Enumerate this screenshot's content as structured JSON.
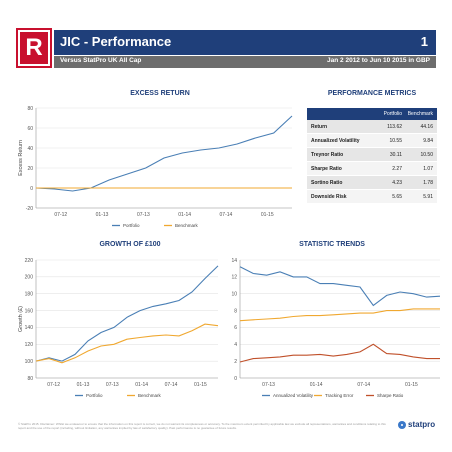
{
  "header": {
    "logo_letter": "R",
    "title": "JIC  -  Performance",
    "page_number": "1",
    "subtitle_left": "Versus StatPro UK All Cap",
    "subtitle_right": "Jan 2 2012 to Jun 10 2015 in GBP"
  },
  "colors": {
    "header_blue": "#1f3f7a",
    "logo_red": "#c8102e",
    "portfolio": "#4a7fb5",
    "benchmark": "#f0a830",
    "annualized_volatility": "#4a7fb5",
    "tracking_error": "#f0a830",
    "sharpe_ratio": "#c0502a"
  },
  "metrics": {
    "title": "PERFORMANCE METRICS",
    "columns": [
      "",
      "Portfolio",
      "Benchmark"
    ],
    "rows": [
      {
        "label": "Return",
        "portfolio": "113.62",
        "benchmark": "44.16"
      },
      {
        "label": "Annualized Volatility",
        "portfolio": "10.55",
        "benchmark": "9.84"
      },
      {
        "label": "Treynor Ratio",
        "portfolio": "30.11",
        "benchmark": "10.50"
      },
      {
        "label": "Sharpe Ratio",
        "portfolio": "2.27",
        "benchmark": "1.07"
      },
      {
        "label": "Sortino Ratio",
        "portfolio": "4.23",
        "benchmark": "1.78"
      },
      {
        "label": "Downside Risk",
        "portfolio": "5.65",
        "benchmark": "5.91"
      }
    ]
  },
  "footer": {
    "disclaimer": "© StatPro 2015. Disclaimer: Whilst we endeavour to ensure that the information on this report is correct, we do not warrant its completeness or accuracy. To the maximum extent permitted by applicable law we exclude all representations, warranties and conditions relating to this report and the use of the report (including, without limitation, any warranties implied by law of satisfactory quality). Past performance is no guarantee of future results.",
    "brand": "statpro"
  },
  "chart_data": [
    {
      "type": "line",
      "title": "EXCESS RETURN",
      "ylabel": "Excess Return",
      "xlabel": "",
      "ylim": [
        -20,
        80
      ],
      "yticks": [
        -20,
        0,
        20,
        40,
        60,
        80
      ],
      "xticks": [
        "07-12",
        "01-13",
        "07-13",
        "01-14",
        "07-14",
        "01-15"
      ],
      "x": [
        "01-12",
        "04-12",
        "07-12",
        "10-12",
        "01-13",
        "04-13",
        "07-13",
        "10-13",
        "01-14",
        "04-14",
        "07-14",
        "10-14",
        "01-15",
        "04-15",
        "06-15"
      ],
      "series": [
        {
          "name": "Portfolio",
          "values": [
            0,
            -1,
            -3,
            0,
            8,
            14,
            20,
            30,
            35,
            38,
            40,
            44,
            50,
            55,
            72
          ]
        },
        {
          "name": "Benchmark",
          "values": [
            0,
            0,
            0,
            0,
            0,
            0,
            0,
            0,
            0,
            0,
            0,
            0,
            0,
            0,
            0
          ]
        }
      ],
      "legend": "bottom"
    },
    {
      "type": "line",
      "title": "GROWTH OF £100",
      "ylabel": "Growth (£)",
      "xlabel": "",
      "ylim": [
        80,
        220
      ],
      "yticks": [
        80,
        100,
        120,
        140,
        160,
        180,
        200,
        220
      ],
      "xticks": [
        "07-12",
        "01-13",
        "07-13",
        "01-14",
        "07-14",
        "01-15"
      ],
      "x": [
        "01-12",
        "04-12",
        "07-12",
        "10-12",
        "01-13",
        "04-13",
        "07-13",
        "10-13",
        "01-14",
        "04-14",
        "07-14",
        "10-14",
        "01-15",
        "04-15",
        "06-15"
      ],
      "series": [
        {
          "name": "Portfolio",
          "values": [
            100,
            104,
            100,
            108,
            124,
            134,
            140,
            152,
            160,
            165,
            168,
            172,
            182,
            198,
            213
          ]
        },
        {
          "name": "Benchmark",
          "values": [
            100,
            103,
            98,
            104,
            112,
            118,
            120,
            126,
            128,
            130,
            131,
            130,
            136,
            144,
            142
          ]
        }
      ],
      "legend": "bottom"
    },
    {
      "type": "line",
      "title": "STATISTIC TRENDS",
      "xlabel": "",
      "ylabel": "",
      "ylim": [
        0,
        14
      ],
      "yticks": [
        0,
        2,
        4,
        6,
        8,
        10,
        12,
        14
      ],
      "xticks": [
        "07-13",
        "01-14",
        "07-14",
        "01-15"
      ],
      "x": [
        "01-13",
        "03-13",
        "05-13",
        "07-13",
        "09-13",
        "11-13",
        "01-14",
        "03-14",
        "05-14",
        "07-14",
        "08-14",
        "09-14",
        "11-14",
        "01-15",
        "03-15",
        "06-15"
      ],
      "series": [
        {
          "name": "Annualized Volatility",
          "values": [
            13.2,
            12.4,
            12.2,
            12.6,
            12.0,
            12.0,
            11.2,
            11.2,
            11.0,
            10.8,
            8.6,
            9.8,
            10.2,
            10.0,
            9.6,
            9.7
          ]
        },
        {
          "name": "Tracking Error",
          "values": [
            6.8,
            6.9,
            7.0,
            7.1,
            7.3,
            7.4,
            7.4,
            7.5,
            7.6,
            7.7,
            7.7,
            8.0,
            8.0,
            8.2,
            8.2,
            8.2
          ]
        },
        {
          "name": "Sharpe Ratio",
          "values": [
            1.9,
            2.3,
            2.4,
            2.5,
            2.7,
            2.7,
            2.8,
            2.6,
            2.8,
            3.1,
            4.0,
            2.9,
            2.8,
            2.5,
            2.3,
            2.3
          ]
        }
      ],
      "legend": "bottom"
    }
  ]
}
